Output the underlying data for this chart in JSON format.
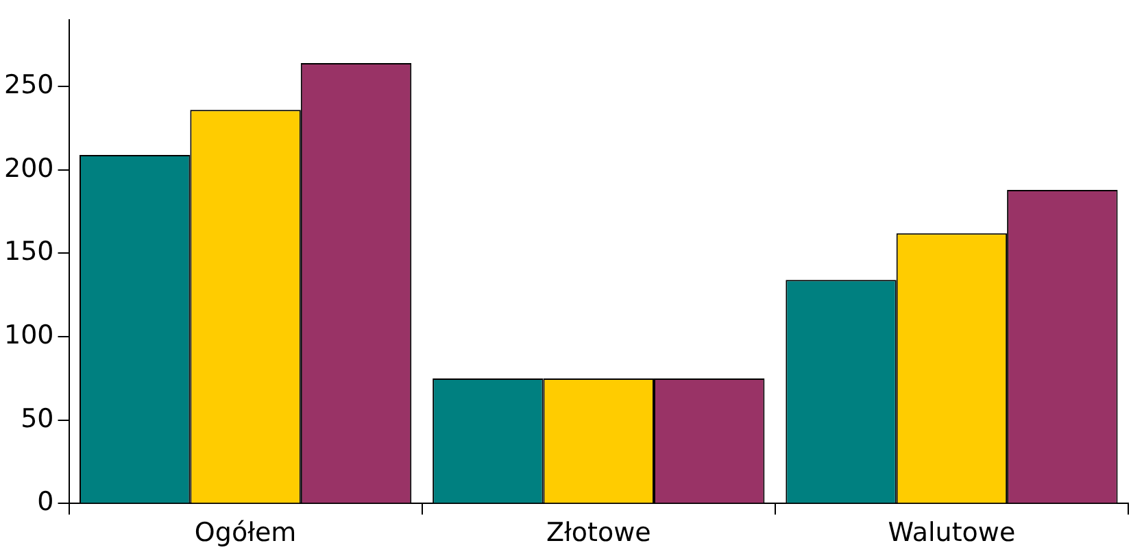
{
  "chart_data": {
    "type": "bar",
    "categories": [
      "Ogółem",
      "Złotowe",
      "Walutowe"
    ],
    "series": [
      {
        "color": "#008080",
        "values": [
          209,
          75,
          134
        ]
      },
      {
        "color": "#ffcc00",
        "values": [
          236,
          75,
          162
        ]
      },
      {
        "color": "#993366",
        "values": [
          264,
          75,
          188
        ]
      }
    ],
    "ylim": [
      0,
      290
    ],
    "yticks": [
      0,
      50,
      100,
      150,
      200,
      250
    ],
    "grid": false,
    "legend": false
  }
}
